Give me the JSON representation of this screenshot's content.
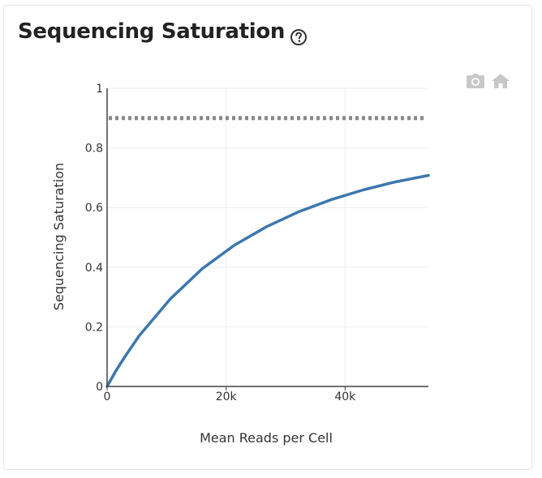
{
  "panel": {
    "title": "Sequencing Saturation",
    "help_icon": "question-circle-icon"
  },
  "toolbar": {
    "icons": [
      "camera-icon",
      "home-icon"
    ]
  },
  "colors": {
    "line": "#3d77ae",
    "reference": "#888888",
    "grid": "#eeeeee",
    "axis": "#444444",
    "icon": "#c8c8c8"
  },
  "chart_data": {
    "type": "line",
    "xlabel": "Mean Reads per Cell",
    "ylabel": "Sequencing Saturation",
    "xlim": [
      0,
      54000
    ],
    "ylim": [
      0,
      1
    ],
    "x_ticks": [
      {
        "value": 0,
        "label": "0"
      },
      {
        "value": 20000,
        "label": "20k"
      },
      {
        "value": 40000,
        "label": "40k"
      }
    ],
    "y_ticks": [
      {
        "value": 0,
        "label": "0"
      },
      {
        "value": 0.2,
        "label": "0.2"
      },
      {
        "value": 0.4,
        "label": "0.4"
      },
      {
        "value": 0.6,
        "label": "0.6"
      },
      {
        "value": 0.8,
        "label": "0.8"
      },
      {
        "value": 1,
        "label": "1"
      }
    ],
    "grid": true,
    "series": [
      {
        "x": [
          0,
          1400,
          3000,
          5400,
          10600,
          16000,
          21400,
          26800,
          32200,
          37600,
          43000,
          48400,
          54000
        ],
        "y": [
          0,
          0.05,
          0.1,
          0.17,
          0.293,
          0.395,
          0.474,
          0.536,
          0.586,
          0.626,
          0.659,
          0.686,
          0.708
        ]
      }
    ],
    "reference_line": {
      "y": 0.9,
      "style": "dotted"
    }
  }
}
